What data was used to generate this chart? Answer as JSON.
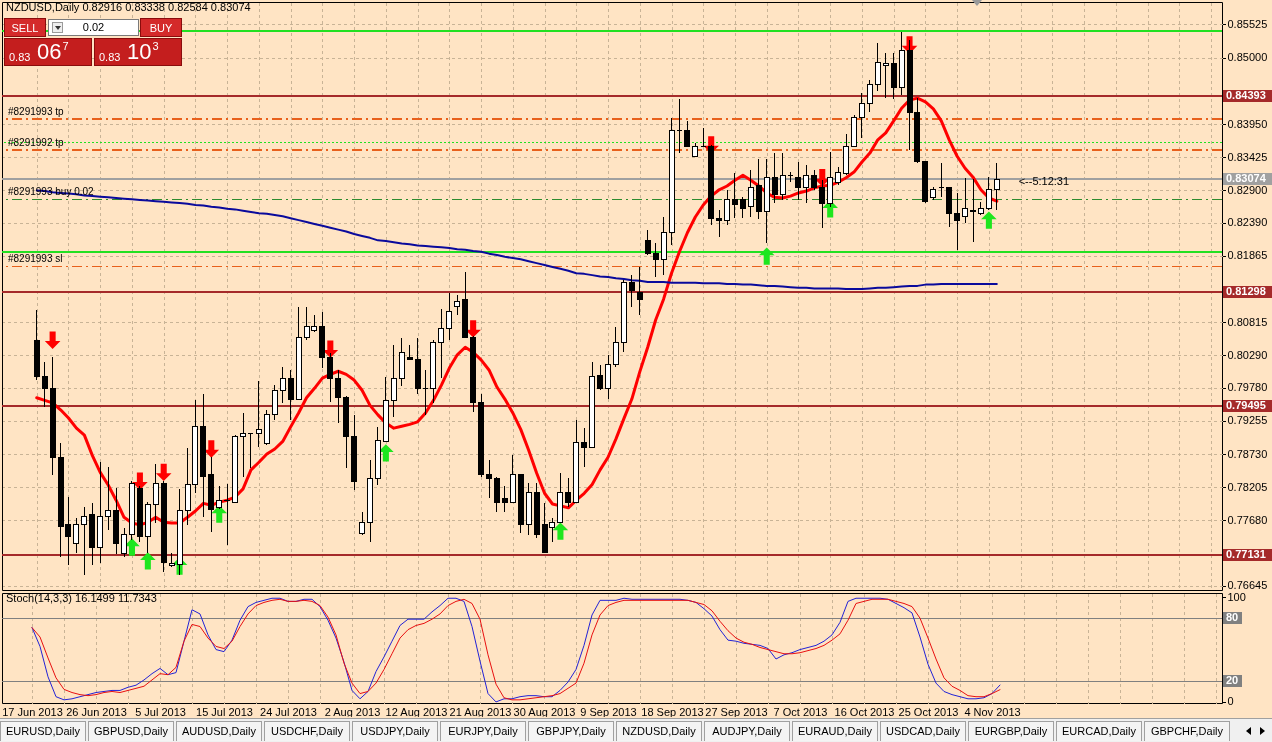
{
  "chart_data": [
    {
      "type": "candlestick",
      "title": "NZDUSD,Daily 0.82916 0.83338 0.82584 0.83074",
      "categories": [
        null,
        null,
        null,
        null,
        null,
        null,
        null,
        null,
        null,
        null,
        null,
        null,
        null,
        null,
        null,
        null,
        null,
        null,
        null,
        null,
        null,
        null,
        null,
        null,
        null,
        null,
        null,
        null,
        null,
        null,
        null,
        null,
        null,
        null,
        null,
        null,
        null,
        null,
        null,
        null,
        null,
        null,
        null,
        null,
        null,
        null,
        null,
        null,
        null,
        null,
        null,
        null,
        null,
        null,
        null,
        null,
        null,
        null,
        null,
        null,
        null,
        null,
        null,
        null,
        null,
        null,
        null,
        null,
        null,
        null,
        null,
        null,
        null,
        null,
        null,
        null,
        null,
        null,
        null,
        null,
        null,
        null,
        null,
        null,
        null,
        null,
        null,
        null,
        null,
        null,
        null,
        null,
        null,
        null,
        null,
        null,
        null,
        null,
        null,
        null,
        null,
        null,
        null,
        null,
        null,
        null,
        null,
        null,
        null,
        null,
        null,
        null,
        null,
        null,
        null,
        null,
        null,
        null,
        null,
        null,
        null,
        null
      ],
      "ohlc": [
        [
          0.8053,
          0.8101,
          0.799,
          0.7995
        ],
        [
          0.7995,
          0.8018,
          0.7947,
          0.7977
        ],
        [
          0.7977,
          0.8026,
          0.784,
          0.7868
        ],
        [
          0.7868,
          0.789,
          0.771,
          0.7759
        ],
        [
          0.7762,
          0.7805,
          0.7697,
          0.7743
        ],
        [
          0.7732,
          0.7772,
          0.7716,
          0.7762
        ],
        [
          0.7762,
          0.7789,
          0.7681,
          0.7775
        ],
        [
          0.7778,
          0.7795,
          0.7697,
          0.7726
        ],
        [
          0.7726,
          0.786,
          0.77,
          0.7775
        ],
        [
          0.7775,
          0.7852,
          0.7753,
          0.7783
        ],
        [
          0.7783,
          0.7819,
          0.7715,
          0.7731
        ],
        [
          0.7716,
          0.7756,
          0.771,
          0.7746
        ],
        [
          0.7746,
          0.783,
          0.7737,
          0.7827
        ],
        [
          0.7819,
          0.7822,
          0.7734,
          0.7743
        ],
        [
          0.7743,
          0.7797,
          0.7716,
          0.7794
        ],
        [
          0.7794,
          0.7857,
          0.7764,
          0.7827
        ],
        [
          0.7827,
          0.783,
          0.7686,
          0.7702
        ],
        [
          0.7697,
          0.7716,
          0.7694,
          0.77
        ],
        [
          0.7699,
          0.7818,
          0.7681,
          0.7784
        ],
        [
          0.7783,
          0.7882,
          0.7761,
          0.7825
        ],
        [
          0.7825,
          0.7958,
          0.7811,
          0.7916
        ],
        [
          0.7916,
          0.7968,
          0.7773,
          0.7838
        ],
        [
          0.784,
          0.7868,
          0.775,
          0.7786
        ],
        [
          0.7788,
          0.7822,
          0.7786,
          0.78
        ],
        [
          0.78,
          0.7825,
          0.7729,
          0.7799
        ],
        [
          0.7797,
          0.7903,
          0.7795,
          0.79
        ],
        [
          0.79,
          0.7938,
          0.7837,
          0.7905
        ],
        [
          0.7905,
          0.7906,
          0.7851,
          0.7905
        ],
        [
          0.7905,
          0.7988,
          0.7884,
          0.7912
        ],
        [
          0.789,
          0.7943,
          0.7888,
          0.7935
        ],
        [
          0.7935,
          0.7982,
          0.7927,
          0.7974
        ],
        [
          0.7974,
          0.8011,
          0.7954,
          0.7993
        ],
        [
          0.7993,
          0.8006,
          0.7927,
          0.796
        ],
        [
          0.796,
          0.8105,
          0.7958,
          0.8058
        ],
        [
          0.8058,
          0.8105,
          0.8053,
          0.8075
        ],
        [
          0.8069,
          0.8093,
          0.8066,
          0.8074
        ],
        [
          0.8075,
          0.8098,
          0.8009,
          0.8025
        ],
        [
          0.8025,
          0.8033,
          0.7955,
          0.7992
        ],
        [
          0.7992,
          0.8006,
          0.7922,
          0.7962
        ],
        [
          0.7962,
          0.7965,
          0.7851,
          0.79
        ],
        [
          0.79,
          0.7935,
          0.7816,
          0.783
        ],
        [
          0.7748,
          0.7781,
          0.7745,
          0.7764
        ],
        [
          0.7765,
          0.7864,
          0.7734,
          0.7835
        ],
        [
          0.7835,
          0.7916,
          0.7824,
          0.7895
        ],
        [
          0.7893,
          0.7995,
          0.7892,
          0.7957
        ],
        [
          0.7957,
          0.8045,
          0.7931,
          0.7993
        ],
        [
          0.7993,
          0.8056,
          0.798,
          0.8033
        ],
        [
          0.8026,
          0.8045,
          0.8022,
          0.8023
        ],
        [
          0.8023,
          0.8056,
          0.7968,
          0.7977
        ],
        [
          0.7977,
          0.8006,
          0.7935,
          0.7977
        ],
        [
          0.7977,
          0.8053,
          0.7954,
          0.805
        ],
        [
          0.805,
          0.8102,
          0.7993,
          0.8071
        ],
        [
          0.8071,
          0.8128,
          0.8053,
          0.8098
        ],
        [
          0.8107,
          0.8124,
          0.8093,
          0.8115
        ],
        [
          0.8117,
          0.8161,
          0.8056,
          0.8058
        ],
        [
          0.8058,
          0.806,
          0.7939,
          0.7954
        ],
        [
          0.7954,
          0.7968,
          0.7837,
          0.784
        ],
        [
          0.7841,
          0.7863,
          0.7803,
          0.7835
        ],
        [
          0.7835,
          0.7837,
          0.7781,
          0.7797
        ],
        [
          0.7803,
          0.7822,
          0.7781,
          0.7797
        ],
        [
          0.7797,
          0.7871,
          0.7795,
          0.784
        ],
        [
          0.784,
          0.7841,
          0.7748,
          0.7762
        ],
        [
          0.7762,
          0.7827,
          0.7745,
          0.7813
        ],
        [
          0.7813,
          0.7827,
          0.774,
          0.7745
        ],
        [
          0.7761,
          0.7795,
          0.7716,
          0.7718
        ],
        [
          0.7757,
          0.7772,
          0.7734,
          0.7764
        ],
        [
          0.7764,
          0.7843,
          0.7764,
          0.7813
        ],
        [
          0.7813,
          0.7835,
          0.7789,
          0.7797
        ],
        [
          0.7797,
          0.7927,
          0.7797,
          0.7892
        ],
        [
          0.7892,
          0.7914,
          0.7852,
          0.7884
        ],
        [
          0.7884,
          0.8018,
          0.7884,
          0.7995
        ],
        [
          0.7998,
          0.8014,
          0.7974,
          0.7977
        ],
        [
          0.7977,
          0.803,
          0.796,
          0.8015
        ],
        [
          0.8015,
          0.8074,
          0.8011,
          0.805
        ],
        [
          0.805,
          0.8148,
          0.8034,
          0.8145
        ],
        [
          0.8145,
          0.8156,
          0.8105,
          0.8131
        ],
        [
          0.8128,
          0.8169,
          0.8093,
          0.8117
        ],
        [
          0.8211,
          0.8227,
          0.8188,
          0.8191
        ],
        [
          0.8191,
          0.8207,
          0.8153,
          0.818
        ],
        [
          0.818,
          0.8248,
          0.8156,
          0.8223
        ],
        [
          0.8223,
          0.8405,
          0.8204,
          0.8384
        ],
        [
          0.8384,
          0.8435,
          0.8349,
          0.8384
        ],
        [
          0.8384,
          0.84,
          0.8359,
          0.836
        ],
        [
          0.8343,
          0.8365,
          0.8343,
          0.836
        ],
        [
          0.836,
          0.8389,
          0.8359,
          0.836
        ],
        [
          0.836,
          0.8362,
          0.8235,
          0.8245
        ],
        [
          0.8245,
          0.8259,
          0.8216,
          0.8242
        ],
        [
          0.8243,
          0.8291,
          0.8235,
          0.8276
        ],
        [
          0.8276,
          0.8317,
          0.8246,
          0.8267
        ],
        [
          0.8275,
          0.8279,
          0.8246,
          0.8262
        ],
        [
          0.8264,
          0.8322,
          0.8248,
          0.8295
        ],
        [
          0.8297,
          0.834,
          0.8245,
          0.8256
        ],
        [
          0.8256,
          0.834,
          0.8207,
          0.831
        ],
        [
          0.831,
          0.8349,
          0.827,
          0.8283
        ],
        [
          0.8284,
          0.8349,
          0.8275,
          0.8314
        ],
        [
          0.8313,
          0.8319,
          0.8303,
          0.8313
        ],
        [
          0.8311,
          0.8335,
          0.8275,
          0.8294
        ],
        [
          0.8295,
          0.833,
          0.827,
          0.8313
        ],
        [
          0.8313,
          0.8322,
          0.8291,
          0.8295
        ],
        [
          0.8294,
          0.8306,
          0.823,
          0.827
        ],
        [
          0.827,
          0.8351,
          0.8264,
          0.8311
        ],
        [
          0.8302,
          0.8327,
          0.8298,
          0.8319
        ],
        [
          0.8317,
          0.8379,
          0.8314,
          0.836
        ],
        [
          0.836,
          0.8409,
          0.8359,
          0.8406
        ],
        [
          0.8406,
          0.8444,
          0.8373,
          0.8427
        ],
        [
          0.8427,
          0.8465,
          0.8414,
          0.8457
        ],
        [
          0.8457,
          0.8523,
          0.8447,
          0.8493
        ],
        [
          0.8487,
          0.8507,
          0.8436,
          0.849
        ],
        [
          0.849,
          0.8507,
          0.8435,
          0.8452
        ],
        [
          0.8452,
          0.8541,
          0.8441,
          0.8511
        ],
        [
          0.8511,
          0.8528,
          0.8354,
          0.8414
        ],
        [
          0.8414,
          0.8436,
          0.8333,
          0.8335
        ],
        [
          0.8335,
          0.8336,
          0.827,
          0.8272
        ],
        [
          0.8279,
          0.8295,
          0.8275,
          0.8292
        ],
        [
          0.8294,
          0.8333,
          0.8279,
          0.8294
        ],
        [
          0.8294,
          0.8295,
          0.8232,
          0.8253
        ],
        [
          0.8253,
          0.8286,
          0.8196,
          0.8243
        ],
        [
          0.8248,
          0.831,
          0.8238,
          0.8261
        ],
        [
          0.8259,
          0.8308,
          0.8208,
          0.8256
        ],
        [
          0.8254,
          0.8272,
          0.8251,
          0.8262
        ],
        [
          0.8262,
          0.8311,
          0.8259,
          0.8291
        ],
        [
          0.82916,
          0.83338,
          0.82584,
          0.83074
        ]
      ],
      "series": [
        {
          "type": "line",
          "color": "#ff0000",
          "values": [
            0.7962,
            0.7958,
            0.7954,
            0.7943,
            0.793,
            0.7914,
            0.7903,
            0.7871,
            0.7844,
            0.7824,
            0.78,
            0.7773,
            0.7764,
            0.7761,
            0.7765,
            0.7773,
            0.7765,
            0.7764,
            0.7764,
            0.7773,
            0.7783,
            0.7795,
            0.7792,
            0.7797,
            0.78,
            0.7805,
            0.7818,
            0.7848,
            0.786,
            0.7873,
            0.7881,
            0.7893,
            0.7916,
            0.7938,
            0.7962,
            0.7977,
            0.7993,
            0.7999,
            0.8004,
            0.7999,
            0.799,
            0.7974,
            0.795,
            0.7935,
            0.7922,
            0.7914,
            0.7917,
            0.792,
            0.7924,
            0.7938,
            0.7958,
            0.7982,
            0.8009,
            0.803,
            0.8042,
            0.8034,
            0.8022,
            0.8006,
            0.7979,
            0.796,
            0.7938,
            0.7912,
            0.7879,
            0.7843,
            0.7811,
            0.7794,
            0.7791,
            0.7788,
            0.78,
            0.7811,
            0.7825,
            0.7848,
            0.7868,
            0.7897,
            0.7929,
            0.796,
            0.8003,
            0.8042,
            0.8085,
            0.8118,
            0.8159,
            0.8193,
            0.8223,
            0.8248,
            0.8267,
            0.8281,
            0.8291,
            0.8297,
            0.8306,
            0.8314,
            0.8306,
            0.8297,
            0.8286,
            0.8279,
            0.8278,
            0.8281,
            0.8286,
            0.8289,
            0.8294,
            0.8297,
            0.8298,
            0.8303,
            0.831,
            0.8319,
            0.8335,
            0.8349,
            0.837,
            0.8381,
            0.84,
            0.842,
            0.8433,
            0.8436,
            0.843,
            0.8419,
            0.84,
            0.837,
            0.8344,
            0.8325,
            0.8311,
            0.8291,
            0.8278,
            0.8273
          ]
        },
        {
          "type": "line",
          "color": "#0a0a9c",
          "values": [
            0.829,
            0.8289,
            0.8287,
            0.8286,
            0.8285,
            0.8284,
            0.8282,
            0.8281,
            0.828,
            0.8279,
            0.8278,
            0.8277,
            0.8276,
            0.8275,
            0.8274,
            0.8273,
            0.8272,
            0.8271,
            0.827,
            0.8269,
            0.8267,
            0.8266,
            0.8264,
            0.8263,
            0.8261,
            0.826,
            0.8258,
            0.8256,
            0.8254,
            0.8253,
            0.8251,
            0.8249,
            0.8246,
            0.8243,
            0.824,
            0.8237,
            0.8234,
            0.8231,
            0.8228,
            0.8225,
            0.8221,
            0.8218,
            0.8215,
            0.8211,
            0.821,
            0.8208,
            0.8206,
            0.8205,
            0.8203,
            0.8202,
            0.8201,
            0.82,
            0.8199,
            0.8197,
            0.8196,
            0.8194,
            0.8193,
            0.819,
            0.8188,
            0.8185,
            0.8183,
            0.8181,
            0.8178,
            0.8175,
            0.8172,
            0.8169,
            0.8166,
            0.8163,
            0.8159,
            0.8158,
            0.8156,
            0.8154,
            0.8153,
            0.8151,
            0.815,
            0.8148,
            0.8147,
            0.8145,
            0.8145,
            0.8145,
            0.8144,
            0.8144,
            0.8144,
            0.8144,
            0.8143,
            0.8143,
            0.8143,
            0.8142,
            0.8142,
            0.8141,
            0.8141,
            0.814,
            0.8139,
            0.8139,
            0.8138,
            0.8137,
            0.8136,
            0.8136,
            0.8135,
            0.8135,
            0.8135,
            0.8135,
            0.8134,
            0.8134,
            0.8134,
            0.8135,
            0.8136,
            0.8136,
            0.8137,
            0.8138,
            0.8139,
            0.8139,
            0.8141,
            0.8141,
            0.8142,
            0.8142,
            0.8142,
            0.8142,
            0.8142,
            0.8142,
            0.8142,
            0.8142
          ]
        },
        {
          "type": "scatter",
          "color": "#ff0000",
          "marker": "triangle-down",
          "values": [
            null,
            null,
            0.8053,
            null,
            null,
            null,
            null,
            null,
            null,
            null,
            null,
            null,
            null,
            0.783,
            null,
            null,
            0.7844,
            null,
            null,
            null,
            null,
            null,
            0.7881,
            null,
            null,
            null,
            null,
            null,
            null,
            null,
            null,
            null,
            null,
            null,
            null,
            null,
            null,
            0.8039,
            null,
            null,
            null,
            null,
            null,
            null,
            null,
            null,
            null,
            null,
            null,
            null,
            null,
            null,
            null,
            null,
            null,
            0.8071,
            null,
            null,
            null,
            null,
            null,
            null,
            null,
            null,
            null,
            null,
            null,
            null,
            null,
            null,
            null,
            null,
            null,
            null,
            null,
            null,
            null,
            null,
            null,
            null,
            null,
            null,
            null,
            null,
            null,
            0.8362,
            null,
            null,
            null,
            null,
            null,
            null,
            null,
            null,
            null,
            null,
            null,
            null,
            null,
            0.831,
            null,
            null,
            null,
            null,
            null,
            null,
            null,
            null,
            null,
            null,
            0.852,
            null,
            null,
            null,
            null,
            null,
            null,
            null,
            null,
            null,
            null,
            null
          ]
        },
        {
          "type": "scatter",
          "color": "#1ee61e",
          "marker": "triangle",
          "values": [
            null,
            null,
            null,
            null,
            null,
            null,
            null,
            null,
            null,
            null,
            null,
            null,
            0.7726,
            null,
            0.7704,
            null,
            null,
            null,
            0.7696,
            null,
            null,
            null,
            null,
            0.7778,
            null,
            null,
            null,
            null,
            null,
            null,
            null,
            null,
            null,
            null,
            null,
            null,
            null,
            null,
            null,
            null,
            null,
            null,
            null,
            null,
            0.7875,
            null,
            null,
            null,
            null,
            null,
            null,
            null,
            null,
            null,
            null,
            null,
            null,
            null,
            null,
            null,
            null,
            null,
            null,
            null,
            null,
            null,
            0.7751,
            null,
            null,
            null,
            null,
            null,
            null,
            null,
            null,
            null,
            null,
            null,
            null,
            null,
            null,
            null,
            null,
            null,
            null,
            null,
            null,
            null,
            null,
            null,
            null,
            null,
            0.8186,
            null,
            null,
            null,
            null,
            null,
            null,
            null,
            0.8261,
            null,
            null,
            null,
            null,
            null,
            null,
            null,
            null,
            null,
            null,
            null,
            null,
            null,
            null,
            null,
            null,
            null,
            null,
            null,
            0.8243,
            null
          ]
        }
      ],
      "ylim": [
        0.7658,
        0.8588
      ],
      "yticks": [
        0.85525,
        {
          "value": 0.85,
          "label": "0.85000"
        },
        {
          "value": 0.8395,
          "label": "0.83950"
        },
        0.83425,
        {
          "value": 0.829,
          "label": "0.82900"
        },
        {
          "value": 0.8239,
          "label": "0.82390"
        },
        0.81865,
        0.80815,
        {
          "value": 0.8029,
          "label": "0.80290"
        },
        {
          "value": 0.7978,
          "label": "0.79780"
        },
        0.79255,
        {
          "value": 0.7873,
          "label": "0.78730"
        },
        0.78205,
        {
          "value": 0.7768,
          "label": "0.77680"
        },
        0.76645
      ],
      "ref_lines": [
        {
          "axis": "y",
          "value": 0.8542,
          "color": "#22e022",
          "line_style": "solid"
        },
        {
          "axis": "y",
          "value": 0.84393,
          "label": "0.84393",
          "color": "#a52a2a",
          "line_style": "solid"
        },
        {
          "axis": "y",
          "value": 0.8403,
          "label": "#8291993 tp",
          "color": "#e8601c",
          "line_style": "dashed"
        },
        {
          "axis": "y",
          "value": 0.8365,
          "color": "#22e022",
          "line_style": "dotted"
        },
        {
          "axis": "y",
          "value": 0.8354,
          "label": "#8291992 tp",
          "color": "#e8601c",
          "line_style": "dashed"
        },
        {
          "axis": "y",
          "value": 0.83074,
          "label": "0.83074",
          "color": "#a0a0a0",
          "line_style": "solid"
        },
        {
          "axis": "y",
          "value": 0.8276,
          "label": "#8291993 buy 0.02",
          "color": "#2e8b2e",
          "line_style": "dashed"
        },
        {
          "axis": "y",
          "value": 0.8193,
          "color": "#22e022",
          "line_style": "solid"
        },
        {
          "axis": "y",
          "value": 0.817,
          "label": "#8291993 sl",
          "color": "#e8601c",
          "line_style": "dashed"
        },
        {
          "axis": "y",
          "value": 0.81298,
          "label": "0.81298",
          "color": "#a52a2a",
          "line_style": "solid"
        },
        {
          "axis": "y",
          "value": 0.79495,
          "label": "0.79495",
          "color": "#a52a2a",
          "line_style": "solid"
        },
        {
          "axis": "y",
          "value": 0.77131,
          "label": "0.77131",
          "color": "#a52a2a",
          "line_style": "solid"
        }
      ],
      "annotations": [
        {
          "text": "<--5:12:31",
          "y": 0.8303
        }
      ],
      "grid": true,
      "tick_labels": "y"
    },
    {
      "type": "line",
      "title": "Stoch(14,3,3) 16.1499 11.7343",
      "categories": [
        "17 Jun 2013",
        null,
        null,
        null,
        null,
        null,
        null,
        null,
        "26 Jun 2013",
        null,
        null,
        null,
        null,
        null,
        null,
        null,
        "5 Jul 2013",
        null,
        null,
        null,
        null,
        null,
        null,
        null,
        "15 Jul 2013",
        null,
        null,
        null,
        null,
        null,
        null,
        null,
        "24 Jul 2013",
        null,
        null,
        null,
        null,
        null,
        null,
        null,
        "2 Aug 2013",
        null,
        null,
        null,
        null,
        null,
        null,
        null,
        "12 Aug 2013",
        null,
        null,
        null,
        null,
        null,
        null,
        null,
        "21 Aug 2013",
        null,
        null,
        null,
        null,
        null,
        null,
        null,
        "30 Aug 2013",
        null,
        null,
        null,
        null,
        null,
        null,
        null,
        "9 Sep 2013",
        null,
        null,
        null,
        null,
        null,
        null,
        null,
        "18 Sep 2013",
        null,
        null,
        null,
        null,
        null,
        null,
        null,
        "27 Sep 2013",
        null,
        null,
        null,
        null,
        null,
        null,
        null,
        "7 Oct 2013",
        null,
        null,
        null,
        null,
        null,
        null,
        null,
        "16 Oct 2013",
        null,
        null,
        null,
        null,
        null,
        null,
        null,
        "25 Oct 2013",
        null,
        null,
        null,
        null,
        null,
        null,
        null,
        "4 Nov 2013",
        null
      ],
      "series": [
        {
          "color": "#2323d6",
          "values": [
            71,
            53,
            24,
            5,
            2,
            3,
            5,
            7,
            9,
            10,
            11,
            11,
            14,
            16,
            21,
            27,
            32,
            26,
            28,
            58,
            88,
            84,
            64,
            50,
            48,
            59,
            78,
            91,
            95,
            97,
            99,
            99,
            96,
            96,
            98,
            98,
            91,
            78,
            61,
            38,
            11,
            3,
            10,
            29,
            43,
            58,
            73,
            79,
            79,
            79,
            86,
            92,
            99,
            99,
            96,
            72,
            39,
            8,
            0,
            3,
            3,
            5,
            6,
            6,
            5,
            5,
            11,
            19,
            31,
            54,
            83,
            97,
            97,
            97,
            99,
            98,
            98,
            98,
            98,
            98,
            98,
            98,
            97,
            95,
            89,
            82,
            69,
            59,
            58,
            56,
            55,
            54,
            51,
            41,
            45,
            47,
            50,
            52,
            54,
            58,
            64,
            76,
            96,
            99,
            99,
            99,
            99,
            98,
            94,
            90,
            85,
            62,
            36,
            18,
            10,
            7,
            5,
            3,
            3,
            4,
            8,
            16.1499
          ]
        },
        {
          "color": "#e81010",
          "values": [
            71,
            62,
            42,
            23,
            12,
            9,
            7,
            6,
            7,
            9,
            10,
            9,
            11,
            13,
            15,
            21,
            27,
            26,
            33,
            58,
            74,
            72,
            61,
            53,
            51,
            58,
            72,
            84,
            92,
            95,
            97,
            98,
            96,
            96,
            97,
            96,
            92,
            81,
            64,
            37,
            18,
            8,
            10,
            18,
            31,
            46,
            61,
            69,
            73,
            75,
            79,
            84,
            92,
            96,
            98,
            94,
            79,
            45,
            17,
            4,
            2,
            2,
            3,
            4,
            5,
            6,
            8,
            13,
            18,
            37,
            64,
            83,
            92,
            95,
            97,
            97,
            97,
            97,
            97,
            97,
            97,
            97,
            97,
            95,
            93,
            87,
            77,
            68,
            61,
            57,
            55,
            52,
            50,
            48,
            46,
            46,
            47,
            49,
            51,
            54,
            59,
            65,
            78,
            94,
            96,
            98,
            98,
            98,
            96,
            94,
            91,
            80,
            61,
            41,
            23,
            15,
            11,
            6,
            5,
            5,
            8,
            11.7343
          ]
        }
      ],
      "ylim": [
        -1,
        104
      ],
      "yticks": [
        0,
        100
      ],
      "ref_lines": [
        {
          "axis": "y",
          "value": 80,
          "label": "80",
          "color": "#808080",
          "line_style": "solid"
        },
        {
          "axis": "y",
          "value": 20,
          "label": "20",
          "color": "#808080",
          "line_style": "solid"
        }
      ],
      "grid": "x"
    },
    {
      "type": "other",
      "annotations": [
        "SELL",
        "0.02",
        "BUY",
        "0.83",
        "06$^{7}$",
        "0.83",
        "10$^{3}$"
      ]
    },
    {
      "type": "other",
      "annotations": [
        "EURUSD,Daily",
        "GBPUSD,Daily",
        "AUDUSD,Daily",
        "USDCHF,Daily",
        "USDJPY,Daily",
        "EURJPY,Daily",
        "GBPJPY,Daily",
        "NZDUSD,Daily",
        "AUDJPY,Daily",
        "EURAUD,Daily",
        "USDCAD,Daily",
        "EURGBP,Daily",
        "EURCAD,Daily",
        "GBPCHF,Daily"
      ]
    }
  ]
}
